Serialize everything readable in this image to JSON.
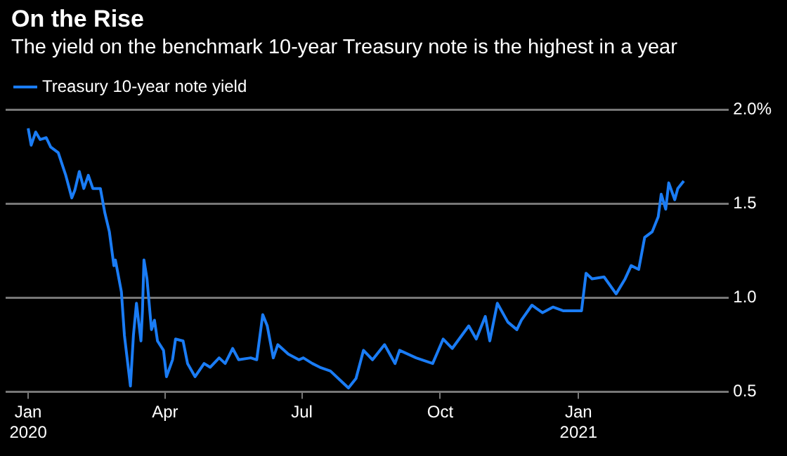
{
  "chart_data": {
    "type": "line",
    "title": "On the Rise",
    "subtitle": "The yield on the benchmark 10-year Treasury note is the highest in a year",
    "x": [
      "2020-01-01",
      "2020-01-03",
      "2020-01-06",
      "2020-01-09",
      "2020-01-13",
      "2020-01-16",
      "2020-01-21",
      "2020-01-26",
      "2020-01-30",
      "2020-02-01",
      "2020-02-04",
      "2020-02-07",
      "2020-02-10",
      "2020-02-13",
      "2020-02-18",
      "2020-02-21",
      "2020-02-24",
      "2020-02-27",
      "2020-02-28",
      "2020-03-03",
      "2020-03-05",
      "2020-03-09",
      "2020-03-11",
      "2020-03-13",
      "2020-03-16",
      "2020-03-17",
      "2020-03-18",
      "2020-03-20",
      "2020-03-23",
      "2020-03-25",
      "2020-03-27",
      "2020-03-31",
      "2020-04-02",
      "2020-04-06",
      "2020-04-08",
      "2020-04-13",
      "2020-04-16",
      "2020-04-21",
      "2020-04-27",
      "2020-05-01",
      "2020-05-07",
      "2020-05-11",
      "2020-05-16",
      "2020-05-20",
      "2020-05-28",
      "2020-06-01",
      "2020-06-05",
      "2020-06-08",
      "2020-06-12",
      "2020-06-15",
      "2020-06-22",
      "2020-06-29",
      "2020-07-02",
      "2020-07-08",
      "2020-07-13",
      "2020-07-20",
      "2020-07-28",
      "2020-08-01",
      "2020-08-06",
      "2020-08-11",
      "2020-08-17",
      "2020-08-25",
      "2020-09-01",
      "2020-09-04",
      "2020-09-15",
      "2020-09-26",
      "2020-10-03",
      "2020-10-09",
      "2020-10-20",
      "2020-10-25",
      "2020-10-31",
      "2020-11-03",
      "2020-11-08",
      "2020-11-15",
      "2020-11-21",
      "2020-11-24",
      "2020-12-01",
      "2020-12-08",
      "2020-12-15",
      "2020-12-22",
      "2021-01-03",
      "2021-01-06",
      "2021-01-10",
      "2021-01-18",
      "2021-01-26",
      "2021-02-01",
      "2021-02-05",
      "2021-02-10",
      "2021-02-14",
      "2021-02-19",
      "2021-02-23",
      "2021-02-25",
      "2021-02-28",
      "2021-03-02",
      "2021-03-06",
      "2021-03-08",
      "2021-03-12"
    ],
    "series": [
      {
        "name": "Treasury 10-year note yield",
        "color": "#1a7cf5",
        "values": [
          1.9,
          1.81,
          1.88,
          1.84,
          1.85,
          1.8,
          1.77,
          1.65,
          1.53,
          1.57,
          1.67,
          1.58,
          1.65,
          1.58,
          1.58,
          1.45,
          1.35,
          1.17,
          1.2,
          1.03,
          0.8,
          0.53,
          0.8,
          0.97,
          0.77,
          0.93,
          1.2,
          1.1,
          0.83,
          0.88,
          0.77,
          0.72,
          0.58,
          0.67,
          0.78,
          0.77,
          0.65,
          0.58,
          0.65,
          0.63,
          0.68,
          0.65,
          0.73,
          0.67,
          0.68,
          0.67,
          0.91,
          0.85,
          0.68,
          0.75,
          0.7,
          0.67,
          0.68,
          0.65,
          0.63,
          0.61,
          0.55,
          0.52,
          0.57,
          0.72,
          0.67,
          0.75,
          0.65,
          0.72,
          0.68,
          0.65,
          0.78,
          0.73,
          0.85,
          0.78,
          0.9,
          0.77,
          0.97,
          0.87,
          0.83,
          0.88,
          0.96,
          0.92,
          0.95,
          0.93,
          0.93,
          1.13,
          1.1,
          1.11,
          1.02,
          1.1,
          1.17,
          1.15,
          1.32,
          1.35,
          1.43,
          1.55,
          1.47,
          1.61,
          1.52,
          1.58,
          1.62
        ]
      }
    ],
    "xlim": [
      "2019-12-17",
      "2021-04-11"
    ],
    "xticks": [
      {
        "value": "2020-01-01",
        "label": "Jan 2020"
      },
      {
        "value": "2020-04-01",
        "label": "Apr"
      },
      {
        "value": "2020-07-01",
        "label": "Jul"
      },
      {
        "value": "2020-10-01",
        "label": "Oct"
      },
      {
        "value": "2021-01-01",
        "label": "Jan 2021"
      }
    ],
    "ylim": [
      0.5,
      2.0
    ],
    "yticks": [
      {
        "value": 0.5,
        "label": "0.5"
      },
      {
        "value": 1,
        "label": "1.0"
      },
      {
        "value": 1.5,
        "label": "1.5"
      },
      {
        "value": 2,
        "label": "2.0%"
      }
    ],
    "grid": "y",
    "legend": "top left",
    "marker": "none",
    "line_style": "solid"
  }
}
